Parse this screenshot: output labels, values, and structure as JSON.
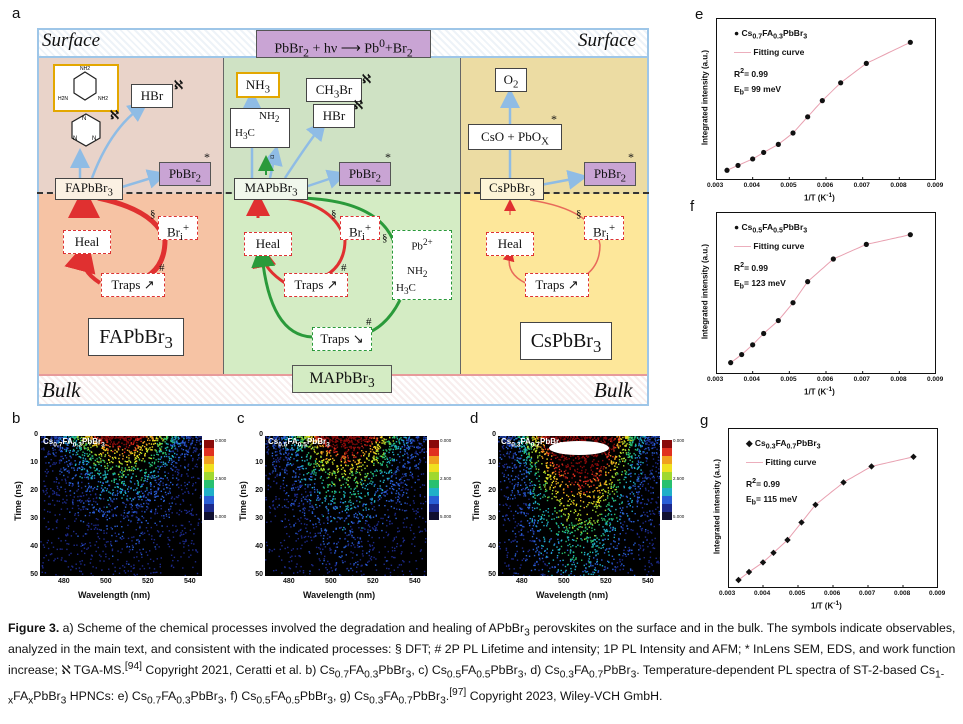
{
  "panel_a": {
    "letter": "a",
    "surface_left": "Surface",
    "surface_right": "Surface",
    "bulk_left": "Bulk",
    "bulk_right": "Bulk",
    "top_reaction_pre": "PbBr",
    "top_reaction_sub": "2",
    "top_reaction_mid": " + hν ",
    "top_reaction_post": " Pb",
    "top_reaction_sup": "0",
    "top_reaction_end": "+Br",
    "top_reaction_sub2": "2",
    "bulk_center": "MAPbBr",
    "bulk_center_sub": "3",
    "fa": {
      "hbr": "HBr",
      "hbr_mark": "ℵ",
      "triazine_mark": "ℵ",
      "surface_node": "FAPbBr",
      "surface_node_sub": "3",
      "pbbr": "PbBr",
      "pbbr_sub": "2",
      "pbbr_mark": "*",
      "heal": "Heal",
      "bri": "Br",
      "bri_sub": "i",
      "bri_sup": "+",
      "bri_mark": "§",
      "traps": "Traps ↗",
      "traps_mark": "#",
      "title": "FAPbBr",
      "title_sub": "3"
    },
    "ma": {
      "nh3": "NH",
      "nh3_sub": "3",
      "ch3br": "CH",
      "ch3br_sub": "3",
      "ch3br_end": "Br",
      "ch3br_mark": "ℵ",
      "hbr": "HBr",
      "hbr_mark": "ℵ",
      "methylamine_h3c": "H",
      "methylamine_h3c_sub": "3",
      "methylamine_c": "C",
      "methylamine_nh2": "NH",
      "methylamine_nh2_sub": "2",
      "small_mark": "¤",
      "surface_node": "MAPbBr",
      "surface_node_sub": "3",
      "pbbr": "PbBr",
      "pbbr_sub": "2",
      "pbbr_mark": "*",
      "heal": "Heal",
      "bri": "Br",
      "bri_sub": "i",
      "bri_sup": "+",
      "bri_mark": "§",
      "traps_up": "Traps ↗",
      "traps_up_mark": "#",
      "traps_down": "Traps ↘",
      "traps_down_mark": "#",
      "pb2": "Pb",
      "pb2_sup": "2+",
      "pb2_mark": "§"
    },
    "cs": {
      "o2": "O",
      "o2_sub": "2",
      "cso": "CsO + PbO",
      "cso_sub": "X",
      "cso_mark": "*",
      "surface_node": "CsPbBr",
      "surface_node_sub": "3",
      "pbbr": "PbBr",
      "pbbr_sub": "2",
      "pbbr_mark": "*",
      "heal": "Heal",
      "bri": "Br",
      "bri_sub": "i",
      "bri_sup": "+",
      "bri_mark": "§",
      "traps": "Traps ↗",
      "title": "CsPbBr",
      "title_sub": "3"
    }
  },
  "heatmaps": [
    {
      "letter": "b",
      "label_pre": "Cs",
      "label_s1": "0.7",
      "label_mid": "FA",
      "label_s2": "0.3",
      "label_end": "PbBr",
      "label_s3": "3",
      "xlabel": "Wavelength (nm)",
      "ylabel": "Time (ns)",
      "xticks": [
        "480",
        "500",
        "520",
        "540"
      ],
      "yticks": [
        "0",
        "10",
        "20",
        "30",
        "40",
        "50"
      ],
      "scale": [
        "0.000",
        "2.500",
        "5.000"
      ],
      "intensity": 0.35
    },
    {
      "letter": "c",
      "label_pre": "Cs",
      "label_s1": "0.5",
      "label_mid": "FA",
      "label_s2": "0.5",
      "label_end": "PbBr",
      "label_s3": "3",
      "xlabel": "Wavelength (nm)",
      "ylabel": "Time (ns)",
      "xticks": [
        "480",
        "500",
        "520",
        "540"
      ],
      "yticks": [
        "0",
        "10",
        "20",
        "30",
        "40",
        "50"
      ],
      "scale": [
        "0.000",
        "2.500",
        "5.000"
      ],
      "intensity": 0.5
    },
    {
      "letter": "d",
      "label_pre": "Cs",
      "label_s1": "0.3",
      "label_mid": "FA",
      "label_s2": "0.7",
      "label_end": "PbBr",
      "label_s3": "3",
      "xlabel": "Wavelength (nm)",
      "ylabel": "Time (ns)",
      "xticks": [
        "480",
        "500",
        "520",
        "540"
      ],
      "yticks": [
        "0",
        "10",
        "20",
        "30",
        "40",
        "50"
      ],
      "scale": [
        "0.000",
        "2.500",
        "5.000"
      ],
      "intensity": 1.0
    }
  ],
  "chart_data": [
    {
      "type": "scatter",
      "letter": "e",
      "legend_pre": "Cs",
      "legend_s1": "0.7",
      "legend_mid": "FA",
      "legend_s2": "0.3",
      "legend_end": "PbBr",
      "legend_s3": "3",
      "fit_label": "Fitting curve",
      "r2_label": "R",
      "r2_sup": "2",
      "r2_value": "= 0.99",
      "eb_label": "E",
      "eb_sub": "b",
      "eb_value": "= 99 meV",
      "xlabel": "1/T (K",
      "xlabel_sup": "-1",
      "xlabel_end": ")",
      "ylabel": "Integrated intensity (a.u.)",
      "xlim": [
        0.003,
        0.009
      ],
      "ylim": [
        0,
        1
      ],
      "xticks": [
        "0.003",
        "0.004",
        "0.005",
        "0.006",
        "0.007",
        "0.008",
        "0.009"
      ],
      "marker": "circle",
      "x": [
        0.0033,
        0.0036,
        0.004,
        0.0043,
        0.0047,
        0.0051,
        0.0055,
        0.0059,
        0.0064,
        0.0071,
        0.0083
      ],
      "y": [
        0.06,
        0.09,
        0.13,
        0.17,
        0.22,
        0.29,
        0.39,
        0.49,
        0.6,
        0.72,
        0.85
      ]
    },
    {
      "type": "scatter",
      "letter": "f",
      "legend_pre": "Cs",
      "legend_s1": "0.5",
      "legend_mid": "FA",
      "legend_s2": "0.5",
      "legend_end": "PbBr",
      "legend_s3": "3",
      "fit_label": "Fitting curve",
      "r2_label": "R",
      "r2_sup": "2",
      "r2_value": "= 0.99",
      "eb_label": "E",
      "eb_sub": "b",
      "eb_value": "= 123 meV",
      "xlabel": "1/T (K",
      "xlabel_sup": "-1",
      "xlabel_end": ")",
      "ylabel": "Integrated intensity (a.u.)",
      "xlim": [
        0.003,
        0.009
      ],
      "ylim": [
        0,
        1
      ],
      "xticks": [
        "0.003",
        "0.004",
        "0.005",
        "0.006",
        "0.007",
        "0.008",
        "0.009"
      ],
      "marker": "circle",
      "x": [
        0.0034,
        0.0037,
        0.004,
        0.0043,
        0.0047,
        0.0051,
        0.0055,
        0.0062,
        0.0071,
        0.0083
      ],
      "y": [
        0.07,
        0.12,
        0.18,
        0.25,
        0.33,
        0.44,
        0.57,
        0.71,
        0.8,
        0.86
      ]
    },
    {
      "type": "scatter",
      "letter": "g",
      "legend_pre": "Cs",
      "legend_s1": "0.3",
      "legend_mid": "FA",
      "legend_s2": "0.7",
      "legend_end": "PbBr",
      "legend_s3": "3",
      "fit_label": "Fitting curve",
      "r2_label": "R",
      "r2_sup": "2",
      "r2_value": "= 0.99",
      "eb_label": "E",
      "eb_sub": "b",
      "eb_value": "= 115 meV",
      "xlabel": "1/T (K",
      "xlabel_sup": "-1",
      "xlabel_end": ")",
      "ylabel": "Integrated intensity (a.u.)",
      "xlim": [
        0.003,
        0.009
      ],
      "ylim": [
        0,
        1
      ],
      "xticks": [
        "0.003",
        "0.004",
        "0.005",
        "0.006",
        "0.007",
        "0.008",
        "0.009"
      ],
      "marker": "diamond",
      "x": [
        0.0033,
        0.0036,
        0.004,
        0.0043,
        0.0047,
        0.0051,
        0.0055,
        0.0063,
        0.0071,
        0.0083
      ],
      "y": [
        0.05,
        0.1,
        0.16,
        0.22,
        0.3,
        0.41,
        0.52,
        0.66,
        0.76,
        0.82
      ]
    }
  ],
  "caption": {
    "fig": "Figure 3.",
    "t1": " a) Scheme of the chemical processes involved the degradation and healing of APbBr",
    "s1": "3",
    "t2": " perovskites on the surface and in the bulk. The symbols indicate observables, analyzed in the main text, and consistent with the indicated processes: § DFT; # 2P PL Lifetime and intensity; 1P PL Intensity and AFM; * InLens SEM, EDS, and work function increase; ℵ TGA-MS.",
    "ref1": "[94]",
    "t3": " Copyright 2021, Ceratti et al. b) Cs",
    "s2": "0.7",
    "t4": "FA",
    "s3": "0.3",
    "t5": "PbBr",
    "s4": "3",
    "t6": ", c) Cs",
    "s5": "0.5",
    "t7": "FA",
    "s6": "0.5",
    "t8": "PbBr",
    "s7": "3",
    "t9": ", d) Cs",
    "s8": "0.3",
    "t10": "FA",
    "s9": "0.7",
    "t11": "PbBr",
    "s10": "3",
    "t12": ". Temperature-dependent PL spectra of ST-2-based Cs",
    "s11": "1-x",
    "t13": "FA",
    "s12": "x",
    "t14": "PbBr",
    "s13": "3",
    "t15": " HPNCs: e) Cs",
    "s14": "0.7",
    "t16": "FA",
    "s15": "0.3",
    "t17": "PbBr",
    "s16": "3",
    "t18": ", f) Cs",
    "s17": "0.5",
    "t19": "FA",
    "s18": "0.5",
    "t20": "PbBr",
    "s19": "3",
    "t21": ", g) Cs",
    "s20": "0.3",
    "t22": "FA",
    "s21": "0.7",
    "t23": "PbBr",
    "s22": "3",
    "t24": ".",
    "ref2": "[97]",
    "t25": " Copyright 2023, Wiley-VCH GmbH."
  }
}
